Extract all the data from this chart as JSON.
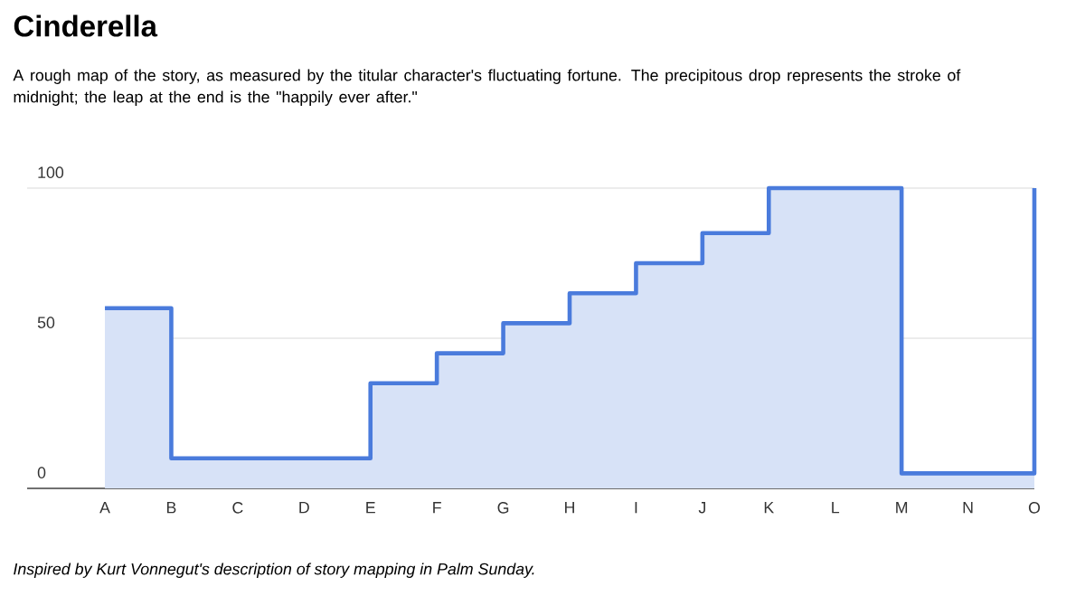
{
  "chart_data": {
    "type": "step",
    "title": "Cinderella",
    "subtitle": "A rough map of the story, as measured by the titular character's fluctuating fortune. The precipitous drop represents the stroke of midnight; the leap at the end is the \"happily ever after.\"",
    "annotations": [
      "*Inspired by Kurt Vonnegut's description of story mapping in Palm Sunday.*"
    ],
    "categories": [
      "A",
      "B",
      "C",
      "D",
      "E",
      "F",
      "G",
      "H",
      "I",
      "J",
      "K",
      "L",
      "M",
      "N",
      "O"
    ],
    "series": [
      {
        "type": "area",
        "color": "#d7e2f7",
        "values": [
          60,
          10,
          10,
          10,
          35,
          45,
          55,
          65,
          75,
          85,
          100,
          100,
          5,
          5,
          100
        ]
      },
      {
        "color": "#4a7bdc",
        "values": [
          60,
          10,
          10,
          10,
          35,
          45,
          55,
          65,
          75,
          85,
          100,
          100,
          5,
          5,
          100
        ]
      }
    ],
    "ylim": [
      0,
      100
    ],
    "yticks": [
      0,
      50,
      100
    ],
    "grid": "y"
  }
}
